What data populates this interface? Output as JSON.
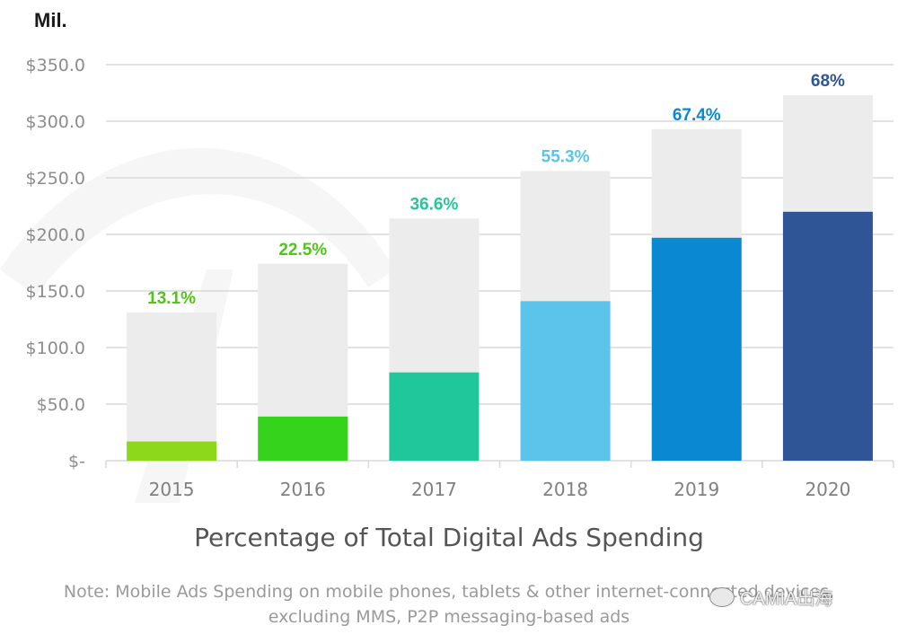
{
  "chart_data": {
    "type": "bar",
    "unit_label": "Mil.",
    "categories": [
      "2015",
      "2016",
      "2017",
      "2018",
      "2019",
      "2020"
    ],
    "series": [
      {
        "name": "Total Digital Ads Spending",
        "values": [
          131,
          174,
          214,
          256,
          293,
          323
        ]
      },
      {
        "name": "Mobile Ads Spending",
        "values": [
          17,
          39,
          78,
          141,
          197,
          220
        ]
      }
    ],
    "percent_labels": [
      "13.1%",
      "22.5%",
      "36.6%",
      "55.3%",
      "67.4%",
      "68%"
    ],
    "bar_colors": [
      "#8ed81c",
      "#36d31c",
      "#1fc79a",
      "#5cc4ea",
      "#0a88d2",
      "#2f5597"
    ],
    "label_colors": [
      "#52c41a",
      "#52c41a",
      "#27c59a",
      "#5cc4ea",
      "#0a88d2",
      "#2f5597"
    ],
    "background_bar_color": "#ececec",
    "y_ticks": [
      {
        "value": 0,
        "label": "$-"
      },
      {
        "value": 50,
        "label": "$50.0"
      },
      {
        "value": 100,
        "label": "$100.0"
      },
      {
        "value": 150,
        "label": "$150.0"
      },
      {
        "value": 200,
        "label": "$200.0"
      },
      {
        "value": 250,
        "label": "$250.0"
      },
      {
        "value": 300,
        "label": "$300.0"
      },
      {
        "value": 350,
        "label": "$350.0"
      }
    ],
    "ylim": [
      0,
      350
    ],
    "grid": true,
    "xlabel": "Percentage of Total Digital Ads Spending",
    "note_line1": "Note: Mobile Ads Spending on mobile phones, tablets & other internet-connected devices,",
    "note_line2": "excluding MMS, P2P messaging-based  ads"
  },
  "watermark": {
    "text": "CAMIA出海"
  }
}
